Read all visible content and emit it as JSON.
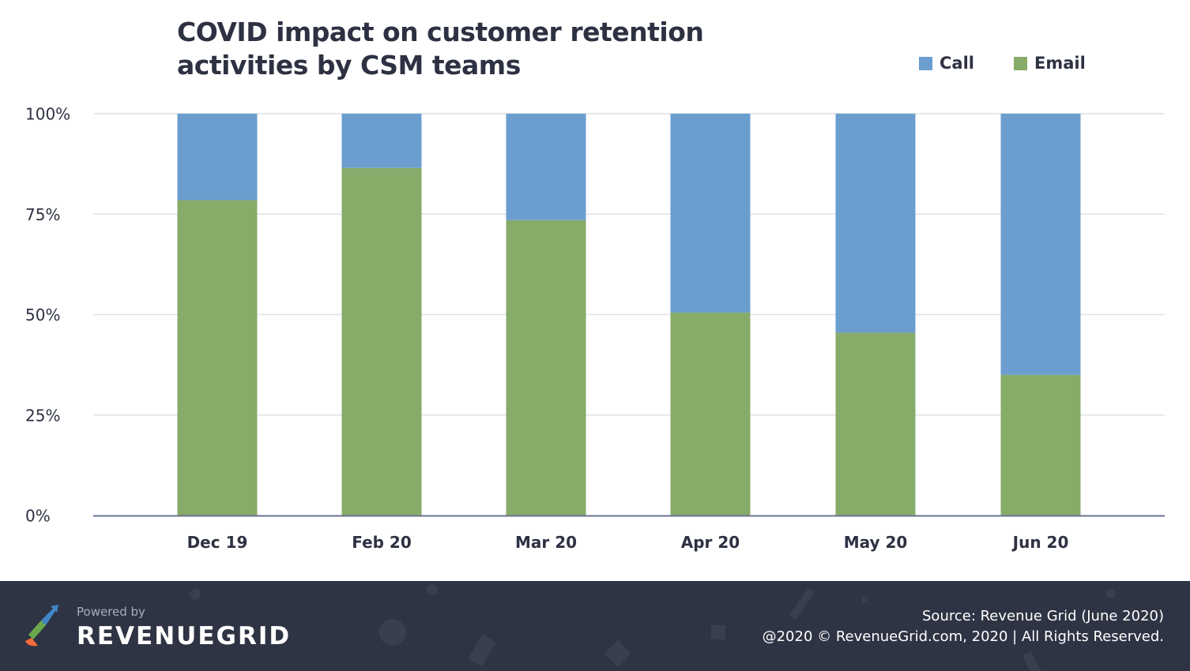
{
  "chart_data": {
    "type": "bar",
    "stacked": true,
    "title": "COVID impact on customer retention activities by CSM teams",
    "categories": [
      "Dec 19",
      "Feb 20",
      "Mar 20",
      "Apr 20",
      "May 20",
      "Jun 20"
    ],
    "series": [
      {
        "name": "Email",
        "color": "#87ab69",
        "values": [
          78.5,
          86.5,
          73.5,
          50.5,
          45.5,
          35
        ]
      },
      {
        "name": "Call",
        "color": "#6b9ecf",
        "values": [
          21.5,
          13.5,
          26.5,
          49.5,
          54.5,
          65
        ]
      }
    ],
    "yticks": [
      "0%",
      "25%",
      "50%",
      "75%",
      "100%"
    ],
    "ylim": [
      0,
      100
    ],
    "xlabel": "",
    "ylabel": "",
    "grid": true,
    "legend_position": "top-right"
  },
  "legend": [
    {
      "label": "Call",
      "color": "#6b9ecf"
    },
    {
      "label": "Email",
      "color": "#87ab69"
    }
  ],
  "footer": {
    "powered_by": "Powered by",
    "brand": "REVENUEGRID",
    "source": "Source: Revenue Grid (June 2020)",
    "rights": "@2020 © RevenueGrid.com, 2020 | All Rights Reserved."
  }
}
